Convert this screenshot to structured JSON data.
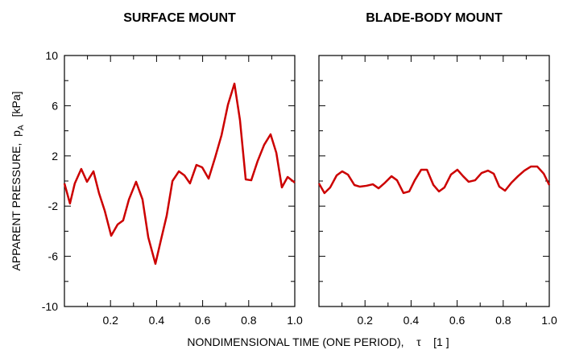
{
  "chart_data": [
    {
      "type": "line",
      "title": "SURFACE  MOUNT",
      "color": "#cc0000",
      "ylabel": {
        "text": "APPARENT PRESSURE,  p",
        "sub": "A",
        "unit": "[kPa]"
      },
      "x": [
        0,
        0.024,
        0.045,
        0.073,
        0.098,
        0.126,
        0.15,
        0.175,
        0.203,
        0.231,
        0.255,
        0.28,
        0.311,
        0.339,
        0.364,
        0.395,
        0.42,
        0.444,
        0.469,
        0.497,
        0.521,
        0.545,
        0.573,
        0.598,
        0.626,
        0.654,
        0.682,
        0.71,
        0.738,
        0.762,
        0.787,
        0.811,
        0.839,
        0.867,
        0.895,
        0.92,
        0.944,
        0.969,
        1
      ],
      "values": [
        -0.19,
        -1.79,
        -0.19,
        0.96,
        -0.06,
        0.77,
        -0.96,
        -2.37,
        -4.36,
        -3.46,
        -3.14,
        -1.47,
        -0.06,
        -1.47,
        -4.49,
        -6.6,
        -4.62,
        -2.76,
        0,
        0.77,
        0.45,
        -0.19,
        1.28,
        1.09,
        0.19,
        1.86,
        3.65,
        6.09,
        7.76,
        4.87,
        0.13,
        0.06,
        1.6,
        2.88,
        3.72,
        2.24,
        -0.51,
        0.32,
        -0.13
      ],
      "xlim": [
        0,
        1
      ],
      "xticks": [
        0.2,
        0.4,
        0.6,
        0.8,
        {
          "value": 1,
          "label": "1.0"
        }
      ],
      "xminor": [
        0.1,
        0.3,
        0.5,
        0.7,
        0.9
      ],
      "ylim": [
        -10,
        10
      ],
      "yticks": [
        10,
        6,
        2,
        -2,
        -6,
        -10
      ],
      "yminor": [
        8,
        4,
        0,
        -4,
        -8
      ],
      "show_yticklabels": true
    },
    {
      "type": "line",
      "title": "BLADE-BODY  MOUNT",
      "color": "#cc0000",
      "x": [
        0,
        0.024,
        0.049,
        0.077,
        0.101,
        0.126,
        0.154,
        0.178,
        0.206,
        0.234,
        0.259,
        0.287,
        0.315,
        0.339,
        0.367,
        0.392,
        0.416,
        0.444,
        0.469,
        0.497,
        0.521,
        0.545,
        0.573,
        0.601,
        0.626,
        0.65,
        0.678,
        0.706,
        0.734,
        0.759,
        0.783,
        0.808,
        0.836,
        0.864,
        0.892,
        0.92,
        0.948,
        0.976,
        1
      ],
      "values": [
        -0.19,
        -0.96,
        -0.51,
        0.45,
        0.77,
        0.51,
        -0.32,
        -0.45,
        -0.38,
        -0.26,
        -0.58,
        -0.13,
        0.38,
        0.06,
        -0.96,
        -0.83,
        0.06,
        0.9,
        0.9,
        -0.32,
        -0.83,
        -0.51,
        0.51,
        0.9,
        0.38,
        -0.06,
        0.06,
        0.64,
        0.83,
        0.58,
        -0.45,
        -0.77,
        -0.13,
        0.38,
        0.83,
        1.15,
        1.15,
        0.58,
        -0.32
      ],
      "xlim": [
        0,
        1
      ],
      "xticks": [
        0.2,
        0.4,
        0.6,
        0.8,
        {
          "value": 1,
          "label": "1.0"
        }
      ],
      "xminor": [
        0.1,
        0.3,
        0.5,
        0.7,
        0.9
      ],
      "ylim": [
        -10,
        10
      ],
      "yticks": [
        10,
        6,
        2,
        -2,
        -6,
        -10
      ],
      "yminor": [
        8,
        4,
        0,
        -4,
        -8
      ],
      "show_yticklabels": false
    }
  ],
  "xlabel": "NONDIMENSIONAL TIME (ONE PERIOD),    τ    [1 ]"
}
